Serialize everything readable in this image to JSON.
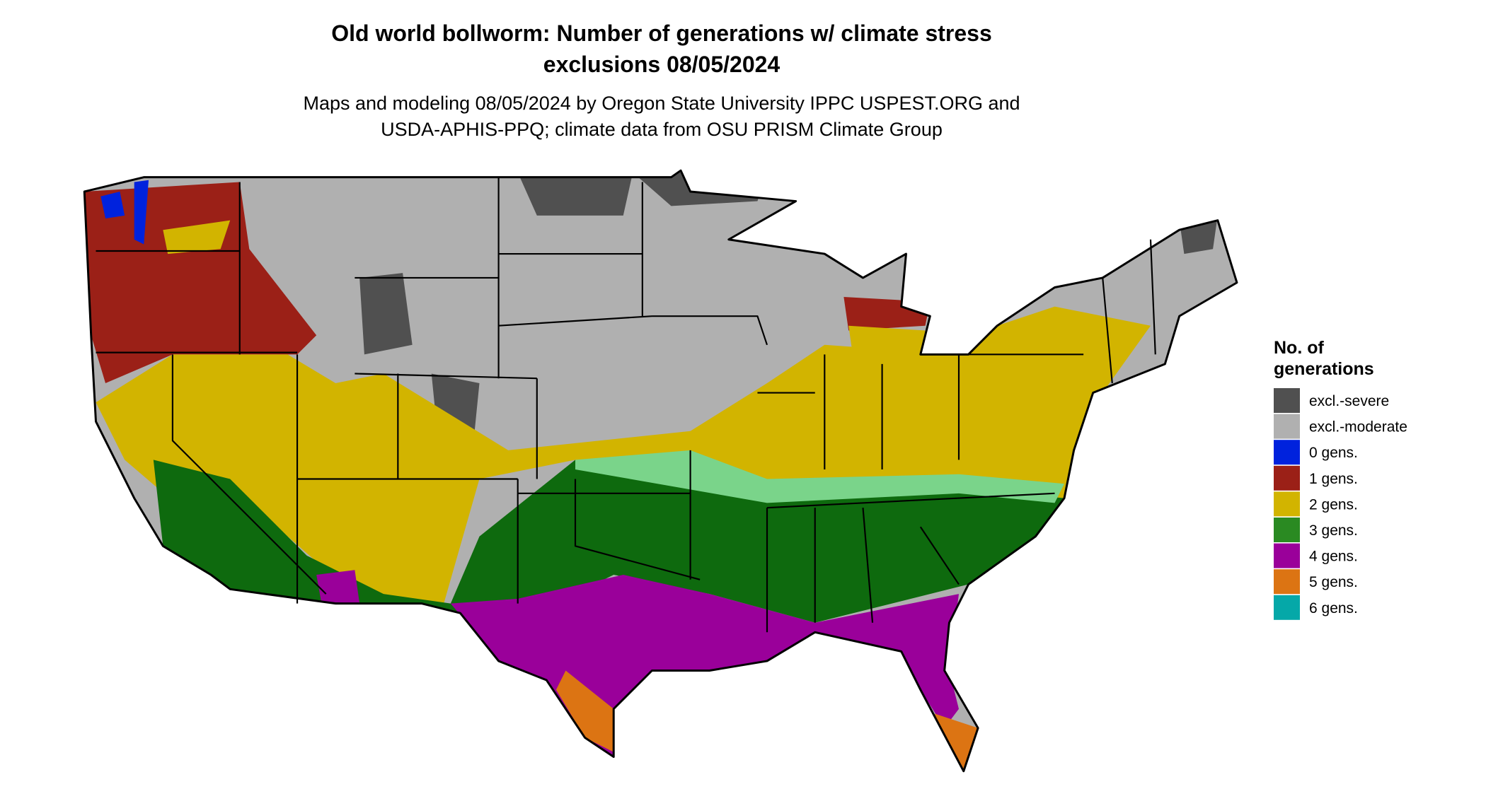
{
  "header": {
    "title": [
      "Old world bollworm: Number of generations w/ climate stress",
      "exclusions 08/05/2024"
    ],
    "subtitle": [
      "Maps and modeling 08/05/2024 by Oregon State University IPPC USPEST.ORG and",
      "USDA-APHIS-PPQ; climate data from OSU PRISM Climate Group"
    ]
  },
  "legend": {
    "title": [
      "No. of",
      "generations"
    ],
    "items": [
      {
        "label": "excl.-severe",
        "color": "#505050"
      },
      {
        "label": "excl.-moderate",
        "color": "#b0b0b0"
      },
      {
        "label": "0 gens.",
        "color": "#0022dd"
      },
      {
        "label": "1 gens.",
        "color": "#9b2017"
      },
      {
        "label": "2 gens.",
        "color": "#d2b400"
      },
      {
        "label": "3 gens.",
        "color": "#2a8a22"
      },
      {
        "label": "4 gens.",
        "color": "#9a009a"
      },
      {
        "label": "5 gens.",
        "color": "#dc7413"
      },
      {
        "label": "6 gens.",
        "color": "#05a8a8"
      }
    ]
  }
}
